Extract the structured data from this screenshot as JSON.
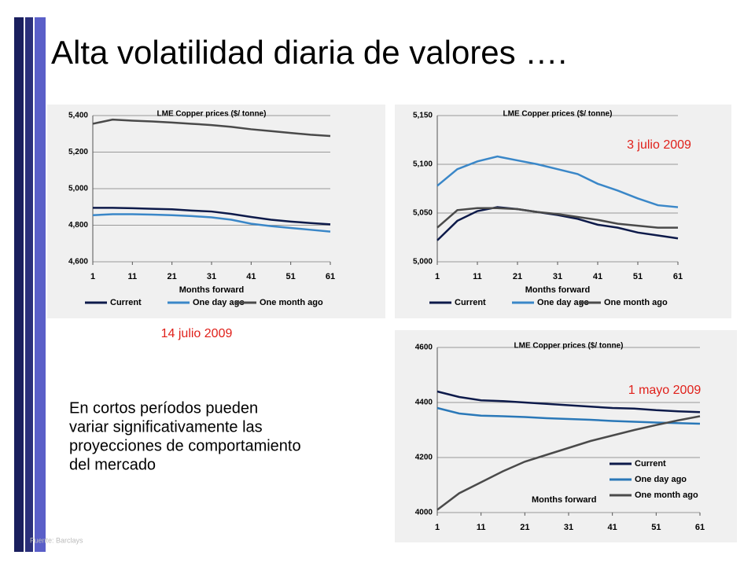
{
  "title": "Alta volatilidad diaria de valores ….",
  "body": [
    "En cortos períodos pueden",
    "variar significativamente  las",
    "proyecciones de comportamiento",
    "del mercado"
  ],
  "source": "Fuente: Barclays",
  "chart_data": [
    {
      "type": "line",
      "title": "LME Copper prices ($/ tonne)",
      "xlabel": "Months forward",
      "annotation": "14 julio 2009",
      "legend": "bottom",
      "grid": true,
      "x": [
        1,
        6,
        11,
        16,
        21,
        26,
        31,
        36,
        41,
        46,
        51,
        56,
        61
      ],
      "xlim": [
        1,
        61
      ],
      "xticks": [
        1,
        11,
        21,
        31,
        41,
        51,
        61
      ],
      "ylim": [
        4600,
        5400
      ],
      "yticks": [
        {
          "value": 4600,
          "label": "4,600"
        },
        {
          "value": 4800,
          "label": "4,800"
        },
        {
          "value": 5000,
          "label": "5,000"
        },
        {
          "value": 5200,
          "label": "5,200"
        },
        {
          "value": 5400,
          "label": "5,400"
        }
      ],
      "series": [
        {
          "name": "Current",
          "color": "#0d1a4a",
          "values": [
            4895,
            4895,
            4893,
            4890,
            4887,
            4880,
            4875,
            4862,
            4845,
            4830,
            4820,
            4812,
            4805
          ]
        },
        {
          "name": "One day ago",
          "color": "#3a87c8",
          "values": [
            4855,
            4860,
            4860,
            4858,
            4855,
            4850,
            4843,
            4830,
            4808,
            4795,
            4785,
            4775,
            4765
          ]
        },
        {
          "name": "One month ago",
          "color": "#4a4a4a",
          "values": [
            5355,
            5378,
            5372,
            5368,
            5362,
            5355,
            5348,
            5338,
            5325,
            5315,
            5305,
            5295,
            5288
          ]
        }
      ]
    },
    {
      "type": "line",
      "title": "LME Copper prices ($/ tonne)",
      "xlabel": "Months forward",
      "annotation": "3 julio 2009",
      "legend": "bottom",
      "grid": true,
      "x": [
        1,
        6,
        11,
        16,
        21,
        26,
        31,
        36,
        41,
        46,
        51,
        56,
        61
      ],
      "xlim": [
        1,
        61
      ],
      "xticks": [
        1,
        11,
        21,
        31,
        41,
        51,
        61
      ],
      "ylim": [
        5000,
        5150
      ],
      "yticks": [
        {
          "value": 5000,
          "label": "5,000"
        },
        {
          "value": 5050,
          "label": "5,050"
        },
        {
          "value": 5100,
          "label": "5,100"
        },
        {
          "value": 5150,
          "label": "5,150"
        }
      ],
      "series": [
        {
          "name": "Current",
          "color": "#0d1a4a",
          "values": [
            5022,
            5042,
            5052,
            5056,
            5054,
            5051,
            5048,
            5044,
            5038,
            5035,
            5030,
            5027,
            5024
          ]
        },
        {
          "name": "One day ago",
          "color": "#3a87c8",
          "values": [
            5078,
            5095,
            5103,
            5108,
            5104,
            5100,
            5095,
            5090,
            5080,
            5073,
            5065,
            5058,
            5056
          ]
        },
        {
          "name": "One month ago",
          "color": "#4a4a4a",
          "values": [
            5035,
            5053,
            5055,
            5055,
            5054,
            5051,
            5049,
            5046,
            5043,
            5039,
            5037,
            5035,
            5035
          ]
        }
      ]
    },
    {
      "type": "line",
      "title": "LME Copper prices ($/ tonne)",
      "xlabel": "Months forward",
      "annotation": "1 mayo 2009",
      "legend": "right",
      "grid": true,
      "x": [
        1,
        6,
        11,
        16,
        21,
        26,
        31,
        36,
        41,
        46,
        51,
        56,
        61
      ],
      "xlim": [
        1,
        61
      ],
      "xticks": [
        1,
        11,
        21,
        31,
        41,
        51,
        61
      ],
      "ylim": [
        4000,
        4600
      ],
      "yticks": [
        4000,
        4200,
        4400,
        4600
      ],
      "series": [
        {
          "name": "Current",
          "color": "#0d1a4a",
          "values": [
            4440,
            4420,
            4408,
            4405,
            4400,
            4395,
            4390,
            4385,
            4380,
            4378,
            4372,
            4368,
            4365
          ]
        },
        {
          "name": "One day ago",
          "color": "#2a78b8",
          "values": [
            4380,
            4360,
            4352,
            4350,
            4347,
            4343,
            4340,
            4337,
            4333,
            4330,
            4327,
            4325,
            4323
          ]
        },
        {
          "name": "One month ago",
          "color": "#4a4a4a",
          "values": [
            4010,
            4070,
            4110,
            4150,
            4185,
            4210,
            4235,
            4260,
            4280,
            4300,
            4318,
            4335,
            4350
          ]
        }
      ]
    }
  ]
}
